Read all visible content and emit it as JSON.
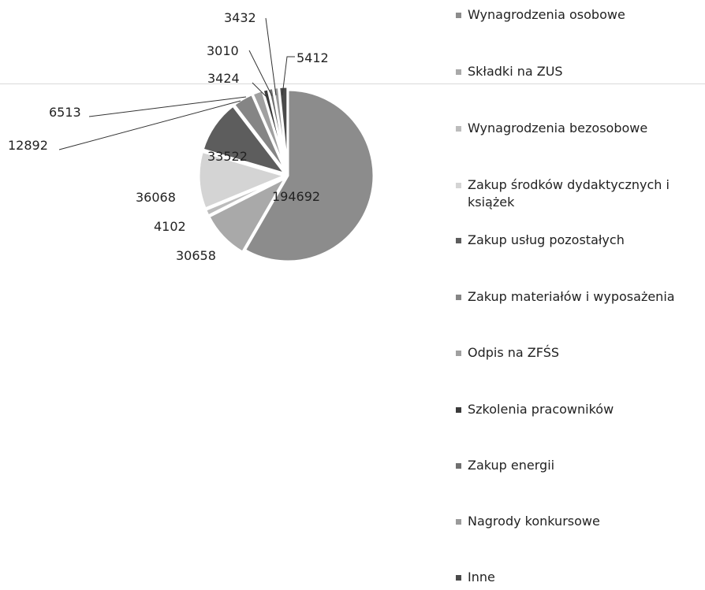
{
  "chart_data": {
    "type": "pie",
    "title": "",
    "categories": [
      "Wynagrodzenia osobowe",
      "Składki na ZUS",
      "Wynagrodzenia bezosobowe",
      "Zakup środków dydaktycznych i\nksiążek",
      "Zakup usług pozostałych",
      "Zakup materiałów i wyposażenia",
      "Odpis na ZFŚS",
      "Szkolenia pracowników",
      "Zakup energii",
      "Nagrody konkursowe",
      "Inne"
    ],
    "values": [
      194692,
      30658,
      4102,
      36068,
      33522,
      12892,
      6513,
      3424,
      3010,
      3432,
      5412
    ],
    "data_labels": [
      "194692",
      "30658",
      "4102",
      "36068",
      "33522",
      "12892",
      "6513",
      "3424",
      "3010",
      "3432",
      "5412"
    ],
    "colors": [
      "#8c8c8c",
      "#a9a9a9",
      "#bcbcbc",
      "#d4d4d4",
      "#5d5d5d",
      "#858585",
      "#a0a0a0",
      "#3a3a3a",
      "#6f6f6f",
      "#9a9a9a",
      "#4a4a4a"
    ],
    "legend_position": "right"
  }
}
